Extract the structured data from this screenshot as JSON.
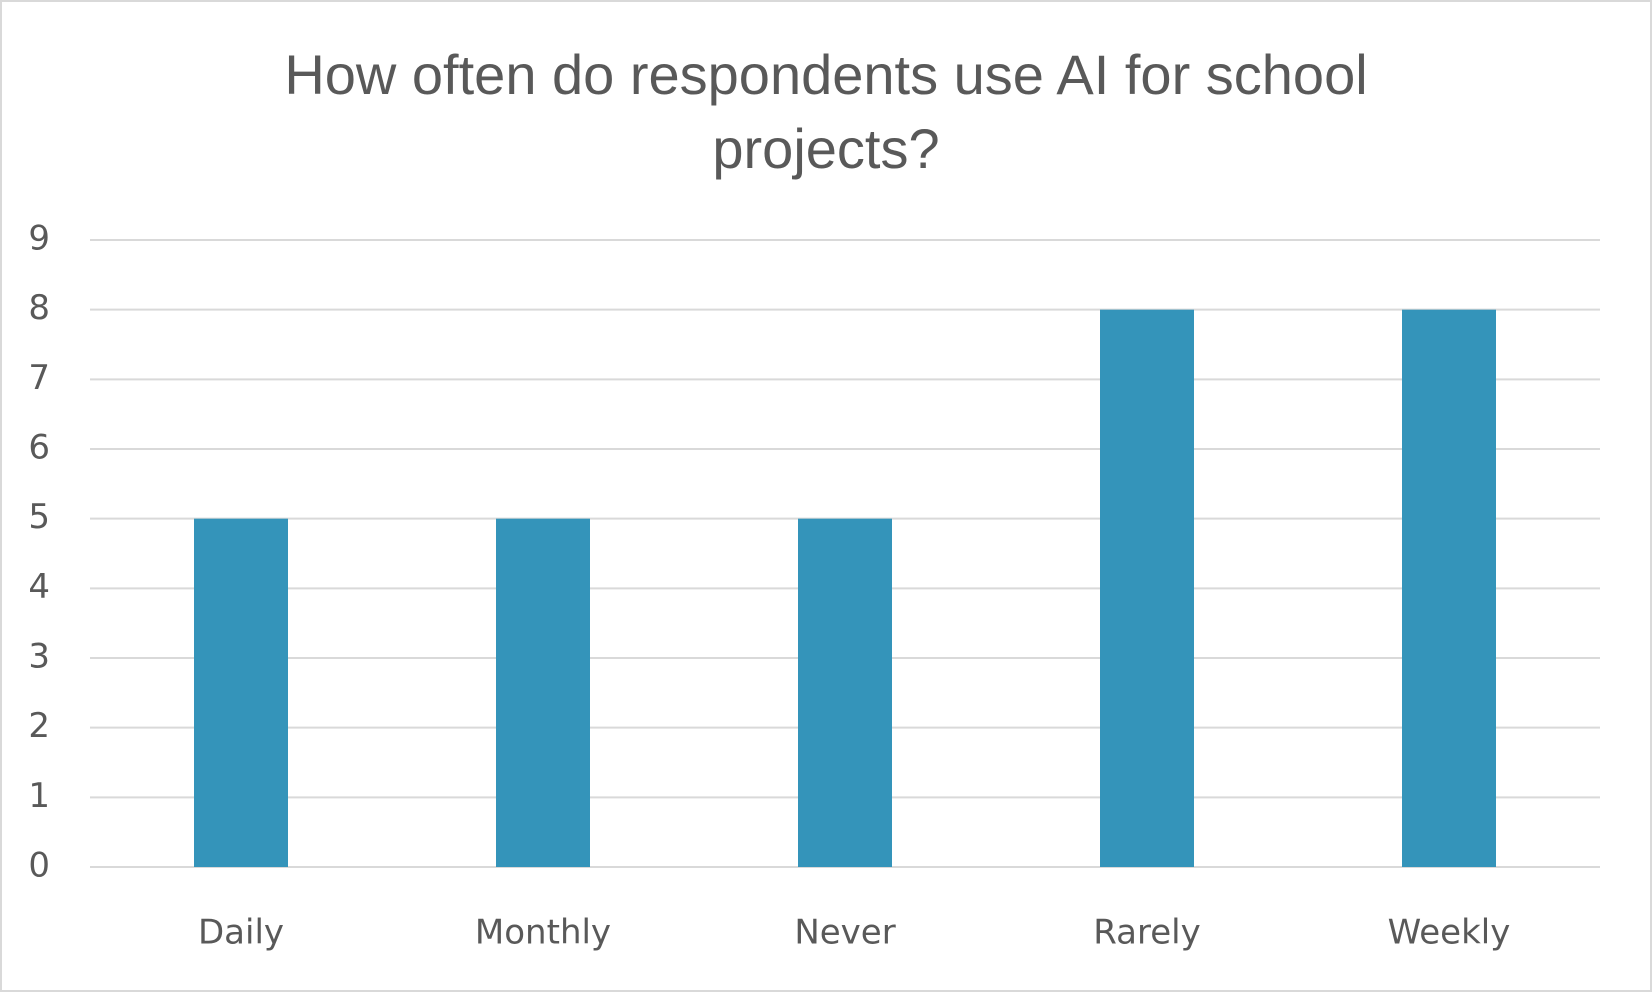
{
  "chart_data": {
    "type": "bar",
    "title": "How often do respondents use AI for school projects?",
    "categories": [
      "Daily",
      "Monthly",
      "Never",
      "Rarely",
      "Weekly"
    ],
    "values": [
      5,
      5,
      5,
      8,
      8
    ],
    "color": "#3494ba",
    "ylim": [
      0,
      9
    ],
    "yticks": [
      0,
      1,
      2,
      3,
      4,
      5,
      6,
      7,
      8,
      9
    ],
    "grid": true
  }
}
